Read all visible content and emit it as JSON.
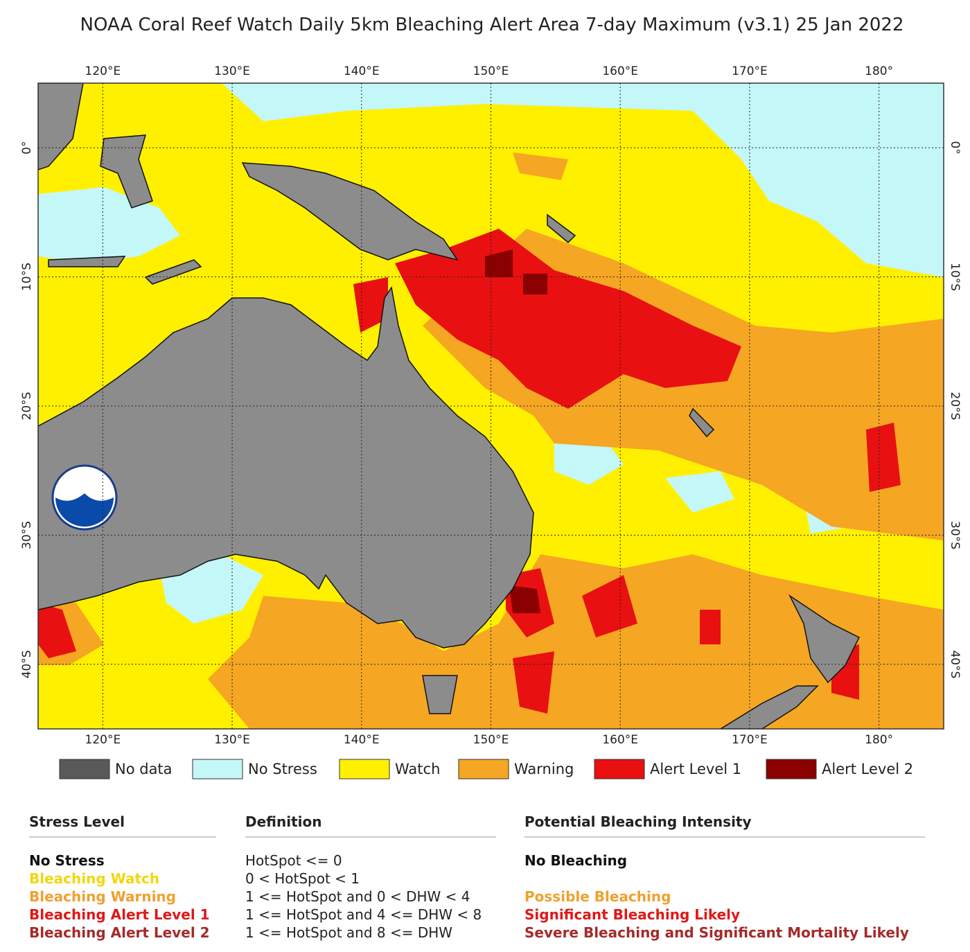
{
  "title": "NOAA Coral Reef Watch Daily 5km Bleaching Alert Area 7-day Maximum  (v3.1)    25 Jan 2022",
  "map": {
    "lonlim": [
      115,
      185
    ],
    "latlim": [
      5,
      -45
    ],
    "lon_ticks": [
      {
        "value": 120,
        "label": "120°E"
      },
      {
        "value": 130,
        "label": "130°E"
      },
      {
        "value": 140,
        "label": "140°E"
      },
      {
        "value": 150,
        "label": "150°E"
      },
      {
        "value": 160,
        "label": "160°E"
      },
      {
        "value": 170,
        "label": "170°E"
      },
      {
        "value": 180,
        "label": "180°"
      }
    ],
    "lat_ticks": [
      {
        "value": 0,
        "label": "0°"
      },
      {
        "value": -10,
        "label": "10°S"
      },
      {
        "value": -20,
        "label": "20°S"
      },
      {
        "value": -30,
        "label": "30°S"
      },
      {
        "value": -40,
        "label": "40°S"
      }
    ]
  },
  "legend": [
    {
      "label": "No data",
      "color": "#595959"
    },
    {
      "label": "No Stress",
      "color": "#c4f7f7"
    },
    {
      "label": "Watch",
      "color": "#fff000"
    },
    {
      "label": "Warning",
      "color": "#f5a623"
    },
    {
      "label": "Alert Level 1",
      "color": "#e81010"
    },
    {
      "label": "Alert Level 2",
      "color": "#8b0000"
    }
  ],
  "table": {
    "headers": [
      "Stress Level",
      "Definition",
      "Potential Bleaching Intensity"
    ],
    "rows": [
      {
        "cells": [
          "No Stress",
          "HotSpot <= 0",
          "No Bleaching"
        ],
        "color": "#111111"
      },
      {
        "cells": [
          "Bleaching Watch",
          "0 < HotSpot < 1",
          null
        ],
        "color": "#f2d70c"
      },
      {
        "cells": [
          "Bleaching Warning",
          "1 <= HotSpot and 0 < DHW < 4",
          "Possible Bleaching"
        ],
        "color": "#f0a030"
      },
      {
        "cells": [
          "Bleaching Alert Level 1",
          "1 <= HotSpot and 4 <= DHW < 8",
          "Significant Bleaching Likely"
        ],
        "color": "#e01818"
      },
      {
        "cells": [
          "Bleaching Alert Level 2",
          "1 <= HotSpot and 8 <= DHW",
          "Severe Bleaching and Significant Mortality Likely"
        ],
        "color": "#a52a2a"
      }
    ]
  }
}
